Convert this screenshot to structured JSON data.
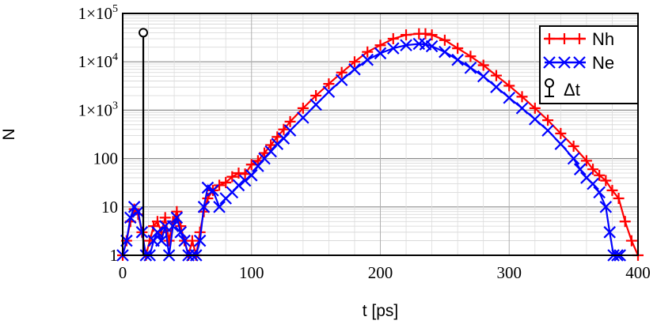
{
  "chart_data": {
    "type": "line",
    "xlabel": "t [ps]",
    "ylabel": "N",
    "xlim": [
      0,
      400
    ],
    "ylim": [
      1,
      100000
    ],
    "y_scale": "log",
    "grid": true,
    "legend_position": "top-right",
    "x_ticks": [
      {
        "value": 0,
        "label": "0"
      },
      {
        "value": 100,
        "label": "100"
      },
      {
        "value": 200,
        "label": "200"
      },
      {
        "value": 300,
        "label": "300"
      },
      {
        "value": 400,
        "label": "400"
      }
    ],
    "y_ticks": [
      {
        "value": 1,
        "label": "1"
      },
      {
        "value": 10,
        "label": "10"
      },
      {
        "value": 100,
        "label": "100"
      },
      {
        "value": 1000,
        "label": "1×10",
        "exp": "3"
      },
      {
        "value": 10000,
        "label": "1×10",
        "exp": "4"
      },
      {
        "value": 100000,
        "label": "1×10",
        "exp": "5"
      }
    ],
    "series": [
      {
        "name": "Nh",
        "color": "#ff0000",
        "marker": "plus",
        "x": [
          0,
          3,
          6,
          9,
          12,
          15,
          18,
          21,
          24,
          27,
          30,
          33,
          36,
          39,
          42,
          45,
          48,
          51,
          54,
          57,
          60,
          63,
          66,
          70,
          75,
          80,
          85,
          90,
          95,
          100,
          105,
          110,
          115,
          120,
          125,
          130,
          140,
          150,
          160,
          170,
          180,
          190,
          200,
          210,
          220,
          230,
          235,
          240,
          250,
          260,
          270,
          280,
          290,
          300,
          310,
          320,
          330,
          340,
          350,
          360,
          365,
          370,
          375,
          380,
          385,
          390,
          395,
          400
        ],
        "y": [
          1,
          2,
          5,
          9,
          7,
          3,
          1,
          2,
          4,
          5,
          3,
          6,
          2,
          5,
          8,
          4,
          2,
          1,
          2,
          1,
          3,
          8,
          15,
          22,
          28,
          32,
          42,
          50,
          48,
          75,
          90,
          130,
          190,
          280,
          400,
          580,
          1100,
          2000,
          3500,
          6000,
          10000,
          16000,
          22000,
          30000,
          36000,
          38000,
          38000,
          36000,
          28000,
          19000,
          13000,
          8500,
          5200,
          3200,
          1900,
          1100,
          620,
          330,
          180,
          90,
          60,
          45,
          35,
          22,
          15,
          5,
          2,
          1
        ]
      },
      {
        "name": "Ne",
        "color": "#0000ff",
        "marker": "x",
        "x": [
          0,
          3,
          6,
          9,
          12,
          15,
          18,
          21,
          24,
          27,
          30,
          33,
          36,
          39,
          42,
          45,
          48,
          51,
          54,
          57,
          60,
          63,
          66,
          70,
          75,
          80,
          85,
          90,
          95,
          100,
          105,
          110,
          115,
          120,
          125,
          130,
          140,
          150,
          160,
          170,
          180,
          190,
          200,
          210,
          220,
          230,
          235,
          240,
          250,
          260,
          270,
          280,
          290,
          300,
          310,
          320,
          330,
          340,
          350,
          355,
          360,
          365,
          370,
          375,
          378,
          381,
          384,
          386
        ],
        "y": [
          1,
          2,
          6,
          10,
          8,
          3,
          1,
          1,
          2,
          3,
          2,
          4,
          1,
          4,
          6,
          3,
          2,
          1,
          1,
          1,
          2,
          10,
          25,
          22,
          10,
          15,
          20,
          28,
          35,
          45,
          70,
          100,
          140,
          200,
          260,
          380,
          700,
          1300,
          2400,
          4200,
          7000,
          11000,
          15000,
          19000,
          22000,
          23500,
          23000,
          21000,
          16000,
          11000,
          7500,
          5000,
          3000,
          1800,
          1100,
          650,
          380,
          200,
          100,
          60,
          40,
          30,
          20,
          10,
          3,
          1,
          1,
          1
        ]
      }
    ],
    "annotation": {
      "name": "Δt",
      "type": "stem",
      "x": 16,
      "y": 40000,
      "marker": "circle",
      "color": "#000000"
    }
  }
}
